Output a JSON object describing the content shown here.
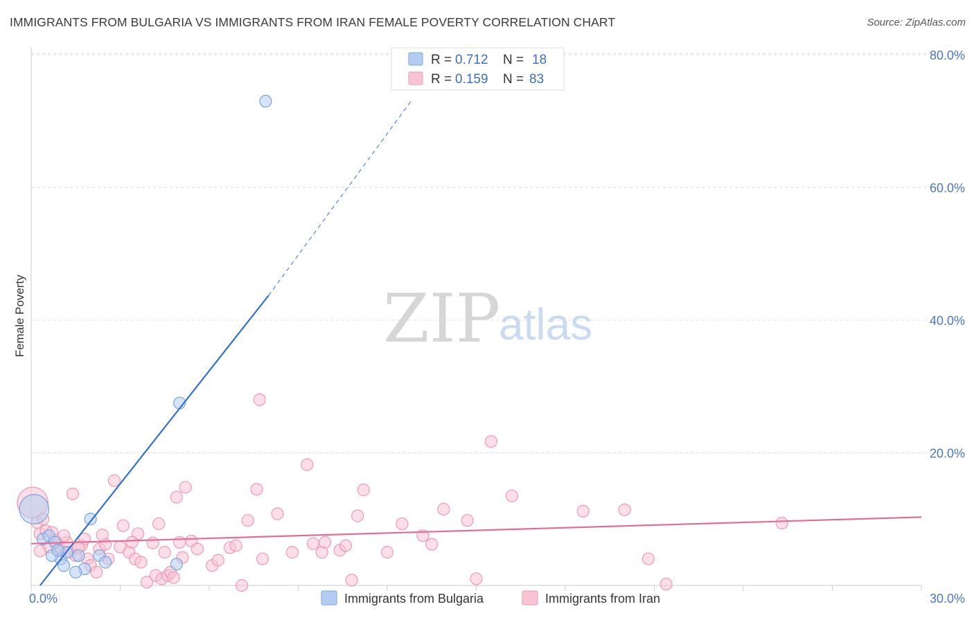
{
  "title": "IMMIGRANTS FROM BULGARIA VS IMMIGRANTS FROM IRAN FEMALE POVERTY CORRELATION CHART",
  "source": "Source: ZipAtlas.com",
  "watermark": {
    "zip": "ZIP",
    "atlas": "atlas"
  },
  "colors": {
    "bulgaria_fill": "#b3cdf2",
    "bulgaria_stroke": "#7aa3dc",
    "bulgaria_line": "#2f6fcf",
    "iran_fill": "#f8c3d3",
    "iran_stroke": "#ee9ab5",
    "iran_line": "#e46b96",
    "grid": "#dddddd",
    "tick_text": "#4a78c2"
  },
  "legend": {
    "rows": [
      {
        "r_label": "R =",
        "r_value": "0.712",
        "n_label": "N =",
        "n_value": "18"
      },
      {
        "r_label": "R =",
        "r_value": "0.159",
        "n_label": "N =",
        "n_value": "83"
      }
    ]
  },
  "chart_data": {
    "type": "scatter",
    "xlabel": "",
    "ylabel": "Female Poverty",
    "xlim": [
      0,
      30
    ],
    "ylim": [
      0,
      80
    ],
    "x_tick_labels": [
      "0.0%",
      "30.0%"
    ],
    "y_ticks": [
      20,
      40,
      60,
      80
    ],
    "y_tick_labels": [
      "20.0%",
      "40.0%",
      "60.0%",
      "80.0%"
    ],
    "series": [
      {
        "name": "Immigrants from Bulgaria",
        "r": 0.712,
        "n": 18,
        "trend": {
          "x0": 0.3,
          "y0": 0.0,
          "x1": 8.0,
          "y1": 43.7,
          "dash_to_x": 12.8,
          "dash_to_y": 73.0
        },
        "points": [
          {
            "x": 0.1,
            "y": 11.5,
            "s": 2.5
          },
          {
            "x": 0.4,
            "y": 7.0
          },
          {
            "x": 0.6,
            "y": 7.5
          },
          {
            "x": 0.8,
            "y": 6.5
          },
          {
            "x": 1.0,
            "y": 4.0
          },
          {
            "x": 1.2,
            "y": 5.0
          },
          {
            "x": 1.6,
            "y": 4.5
          },
          {
            "x": 1.8,
            "y": 2.5
          },
          {
            "x": 2.0,
            "y": 10.0
          },
          {
            "x": 1.1,
            "y": 3.0
          },
          {
            "x": 1.5,
            "y": 2.0
          },
          {
            "x": 0.7,
            "y": 4.5
          },
          {
            "x": 2.3,
            "y": 4.5
          },
          {
            "x": 0.9,
            "y": 5.3
          },
          {
            "x": 2.5,
            "y": 3.5
          },
          {
            "x": 4.9,
            "y": 3.2
          },
          {
            "x": 5.0,
            "y": 27.5
          },
          {
            "x": 7.9,
            "y": 73.0
          }
        ]
      },
      {
        "name": "Immigrants from Iran",
        "r": 0.159,
        "n": 83,
        "trend": {
          "x0": 0.0,
          "y0": 6.3,
          "x1": 30.0,
          "y1": 10.3
        },
        "points": [
          {
            "x": 0.05,
            "y": 12.5,
            "s": 2.6
          },
          {
            "x": 0.2,
            "y": 9.5
          },
          {
            "x": 0.3,
            "y": 7.8
          },
          {
            "x": 0.5,
            "y": 8.2
          },
          {
            "x": 0.6,
            "y": 5.8
          },
          {
            "x": 0.7,
            "y": 8.0
          },
          {
            "x": 0.9,
            "y": 6.0
          },
          {
            "x": 1.0,
            "y": 5.2
          },
          {
            "x": 1.2,
            "y": 6.5
          },
          {
            "x": 1.3,
            "y": 5.0
          },
          {
            "x": 1.5,
            "y": 4.5
          },
          {
            "x": 1.4,
            "y": 13.8
          },
          {
            "x": 1.7,
            "y": 6.0
          },
          {
            "x": 1.8,
            "y": 7.0
          },
          {
            "x": 1.9,
            "y": 4.0
          },
          {
            "x": 2.0,
            "y": 3.0
          },
          {
            "x": 2.2,
            "y": 2.0
          },
          {
            "x": 2.3,
            "y": 5.5
          },
          {
            "x": 2.5,
            "y": 6.2
          },
          {
            "x": 2.6,
            "y": 4.0
          },
          {
            "x": 2.8,
            "y": 15.8
          },
          {
            "x": 3.0,
            "y": 5.8
          },
          {
            "x": 3.1,
            "y": 9.0
          },
          {
            "x": 3.3,
            "y": 5.0
          },
          {
            "x": 3.5,
            "y": 4.0
          },
          {
            "x": 3.6,
            "y": 7.8
          },
          {
            "x": 3.7,
            "y": 3.5
          },
          {
            "x": 3.9,
            "y": 0.5
          },
          {
            "x": 4.1,
            "y": 6.4
          },
          {
            "x": 4.2,
            "y": 1.5
          },
          {
            "x": 4.3,
            "y": 9.3
          },
          {
            "x": 4.4,
            "y": 1.0
          },
          {
            "x": 4.5,
            "y": 5.0
          },
          {
            "x": 4.6,
            "y": 1.5
          },
          {
            "x": 4.7,
            "y": 2.0
          },
          {
            "x": 4.8,
            "y": 1.2
          },
          {
            "x": 4.9,
            "y": 13.3
          },
          {
            "x": 5.0,
            "y": 6.5
          },
          {
            "x": 5.1,
            "y": 4.2
          },
          {
            "x": 5.2,
            "y": 14.8
          },
          {
            "x": 5.4,
            "y": 6.7
          },
          {
            "x": 6.1,
            "y": 3.0
          },
          {
            "x": 6.7,
            "y": 5.7
          },
          {
            "x": 6.9,
            "y": 6.0
          },
          {
            "x": 7.1,
            "y": 0.0
          },
          {
            "x": 7.3,
            "y": 9.8
          },
          {
            "x": 7.6,
            "y": 14.5
          },
          {
            "x": 7.8,
            "y": 4.0
          },
          {
            "x": 7.7,
            "y": 28.0
          },
          {
            "x": 8.3,
            "y": 10.8
          },
          {
            "x": 8.8,
            "y": 5.0
          },
          {
            "x": 9.3,
            "y": 18.2
          },
          {
            "x": 9.5,
            "y": 6.3
          },
          {
            "x": 9.8,
            "y": 5.0
          },
          {
            "x": 9.9,
            "y": 6.5
          },
          {
            "x": 10.4,
            "y": 5.3
          },
          {
            "x": 10.6,
            "y": 6.0
          },
          {
            "x": 10.8,
            "y": 0.8
          },
          {
            "x": 11.0,
            "y": 10.5
          },
          {
            "x": 11.2,
            "y": 14.4
          },
          {
            "x": 12.0,
            "y": 5.0
          },
          {
            "x": 12.5,
            "y": 9.3
          },
          {
            "x": 13.2,
            "y": 7.5
          },
          {
            "x": 13.5,
            "y": 6.2
          },
          {
            "x": 13.9,
            "y": 11.5
          },
          {
            "x": 14.7,
            "y": 9.8
          },
          {
            "x": 15.0,
            "y": 1.0
          },
          {
            "x": 15.5,
            "y": 21.7
          },
          {
            "x": 16.2,
            "y": 13.5
          },
          {
            "x": 18.6,
            "y": 11.2
          },
          {
            "x": 20.0,
            "y": 11.4
          },
          {
            "x": 20.8,
            "y": 4.0
          },
          {
            "x": 21.4,
            "y": 0.2
          },
          {
            "x": 25.3,
            "y": 9.4
          },
          {
            "x": 1.1,
            "y": 7.5
          },
          {
            "x": 0.4,
            "y": 10.0
          },
          {
            "x": 0.8,
            "y": 6.8
          },
          {
            "x": 2.4,
            "y": 7.6
          },
          {
            "x": 3.4,
            "y": 6.5
          },
          {
            "x": 5.6,
            "y": 5.5
          },
          {
            "x": 6.3,
            "y": 3.8
          },
          {
            "x": 0.3,
            "y": 5.2
          },
          {
            "x": 1.6,
            "y": 5.7
          }
        ]
      }
    ]
  },
  "bottom_legend": {
    "bulgaria": "Immigrants from Bulgaria",
    "iran": "Immigrants from Iran"
  }
}
